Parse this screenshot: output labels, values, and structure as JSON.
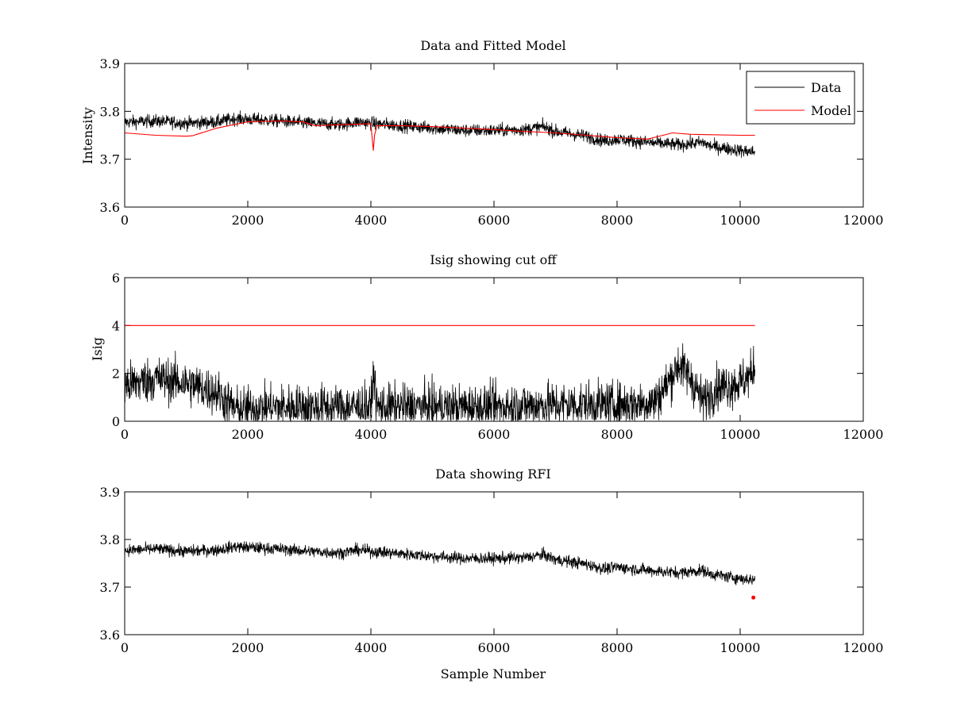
{
  "figure": {
    "background": "#ffffff"
  },
  "chart_data": [
    {
      "type": "line",
      "title": "Data and Fitted Model",
      "xlabel": "",
      "ylabel": "Intensity",
      "xlim": [
        0,
        12000
      ],
      "ylim": [
        3.6,
        3.9
      ],
      "xticks": [
        0,
        2000,
        4000,
        6000,
        8000,
        10000,
        12000
      ],
      "yticks": [
        3.6,
        3.7,
        3.8,
        3.9
      ],
      "xtick_labels": [
        "0",
        "2000",
        "4000",
        "6000",
        "8000",
        "10000",
        "12000"
      ],
      "ytick_labels": [
        "3.6",
        "3.7",
        "3.8",
        "3.9"
      ],
      "legend": {
        "position": "top-right",
        "entries": [
          "Data",
          "Model"
        ]
      },
      "series": [
        {
          "name": "Data",
          "color": "#000000",
          "noise": 0.013,
          "x": [
            0,
            500,
            1000,
            1500,
            1800,
            2500,
            3000,
            3500,
            3800,
            4000,
            4500,
            5000,
            5500,
            6000,
            6500,
            6800,
            7000,
            7500,
            7800,
            8000,
            8500,
            9000,
            9400,
            9500,
            10000,
            10240
          ],
          "values": [
            3.777,
            3.78,
            3.775,
            3.778,
            3.785,
            3.78,
            3.775,
            3.772,
            3.778,
            3.775,
            3.77,
            3.765,
            3.76,
            3.76,
            3.762,
            3.768,
            3.758,
            3.748,
            3.738,
            3.742,
            3.735,
            3.73,
            3.735,
            3.728,
            3.718,
            3.715
          ]
        },
        {
          "name": "Model",
          "color": "#ff0000",
          "x": [
            0,
            500,
            1000,
            1100,
            1500,
            2000,
            2500,
            2900,
            3100,
            3500,
            4000,
            4020,
            4040,
            4060,
            4100,
            4500,
            5000,
            6000,
            6500,
            7000,
            7500,
            8000,
            8500,
            8900,
            9200,
            10000,
            10240
          ],
          "values": [
            3.755,
            3.75,
            3.748,
            3.749,
            3.765,
            3.778,
            3.78,
            3.778,
            3.77,
            3.772,
            3.774,
            3.745,
            3.718,
            3.75,
            3.77,
            3.77,
            3.768,
            3.762,
            3.758,
            3.755,
            3.75,
            3.745,
            3.742,
            3.755,
            3.752,
            3.75,
            3.75
          ]
        }
      ]
    },
    {
      "type": "line",
      "title": "Isig showing cut off",
      "xlabel": "",
      "ylabel": "Isig",
      "xlim": [
        0,
        12000
      ],
      "ylim": [
        0,
        6
      ],
      "xticks": [
        0,
        2000,
        4000,
        6000,
        8000,
        10000,
        12000
      ],
      "yticks": [
        0,
        2,
        4,
        6
      ],
      "xtick_labels": [
        "0",
        "2000",
        "4000",
        "6000",
        "8000",
        "10000",
        "12000"
      ],
      "ytick_labels": [
        "0",
        "2",
        "4",
        "6"
      ],
      "series": [
        {
          "name": "Isig",
          "color": "#000000",
          "noise": 0.9,
          "x": [
            0,
            500,
            1000,
            1500,
            1800,
            2500,
            3000,
            4000,
            4050,
            4100,
            5000,
            6000,
            7000,
            8000,
            8600,
            8800,
            9000,
            9200,
            9400,
            9600,
            10000,
            10200,
            10240
          ],
          "values": [
            1.5,
            1.8,
            1.6,
            1.2,
            0.5,
            0.6,
            0.6,
            0.6,
            2.0,
            0.6,
            0.6,
            0.6,
            0.7,
            0.7,
            0.8,
            1.5,
            2.4,
            1.8,
            0.8,
            1.4,
            1.6,
            2.0,
            2.5
          ]
        },
        {
          "name": "Cut off",
          "color": "#ff0000",
          "x": [
            0,
            10240
          ],
          "values": [
            4,
            4
          ]
        }
      ]
    },
    {
      "type": "line",
      "title": "Data showing RFI",
      "xlabel": "Sample Number",
      "ylabel": "",
      "xlim": [
        0,
        12000
      ],
      "ylim": [
        3.6,
        3.9
      ],
      "xticks": [
        0,
        2000,
        4000,
        6000,
        8000,
        10000,
        12000
      ],
      "yticks": [
        3.6,
        3.7,
        3.8,
        3.9
      ],
      "xtick_labels": [
        "0",
        "2000",
        "4000",
        "6000",
        "8000",
        "10000",
        "12000"
      ],
      "ytick_labels": [
        "3.6",
        "3.7",
        "3.8",
        "3.9"
      ],
      "series": [
        {
          "name": "Data",
          "color": "#000000",
          "noise": 0.012,
          "x": [
            0,
            500,
            1000,
            1500,
            1800,
            2500,
            3000,
            3500,
            3800,
            4000,
            4500,
            5000,
            5500,
            6000,
            6500,
            6800,
            7000,
            7500,
            7800,
            8000,
            8500,
            9000,
            9400,
            9500,
            10000,
            10240
          ],
          "values": [
            3.777,
            3.78,
            3.775,
            3.778,
            3.785,
            3.78,
            3.775,
            3.772,
            3.778,
            3.775,
            3.77,
            3.765,
            3.76,
            3.76,
            3.762,
            3.768,
            3.758,
            3.748,
            3.738,
            3.742,
            3.735,
            3.73,
            3.735,
            3.728,
            3.718,
            3.715
          ]
        }
      ],
      "rfi_points": {
        "color": "#ff0000",
        "x": [
          10215
        ],
        "values": [
          3.678
        ]
      }
    }
  ]
}
